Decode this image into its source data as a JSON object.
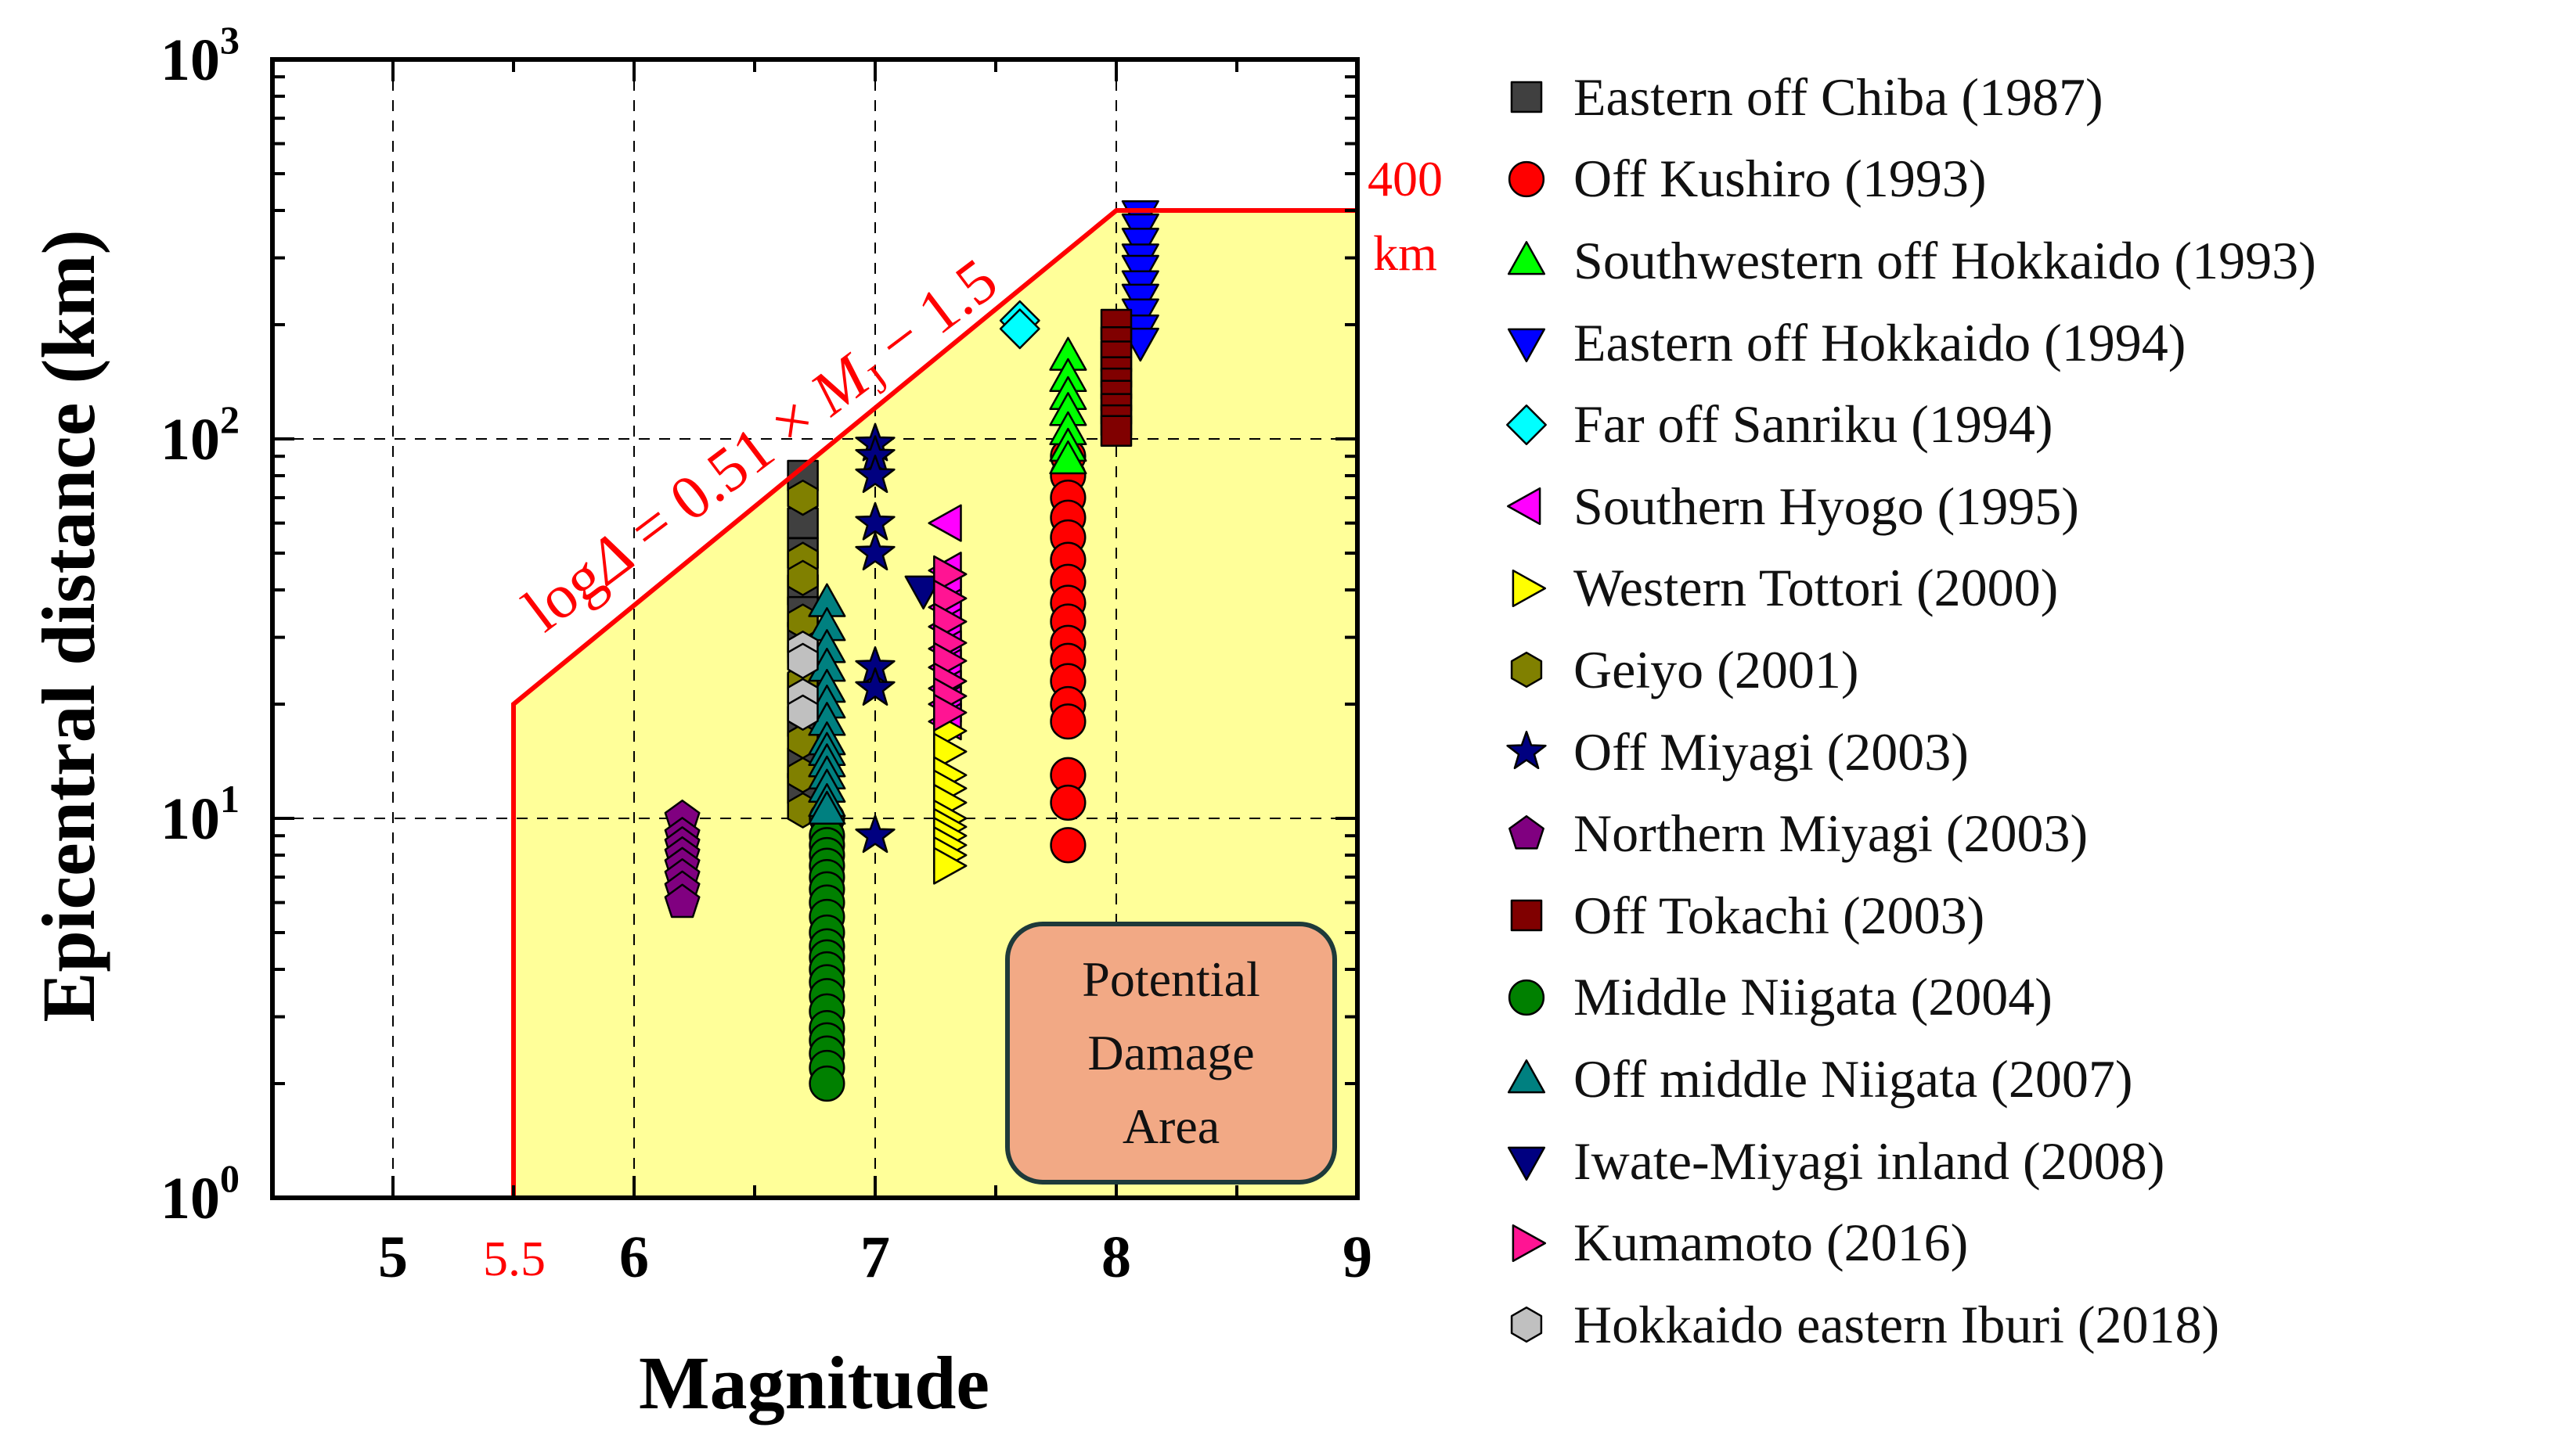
{
  "chart_data": {
    "type": "scatter",
    "title": "",
    "xlabel": "Magnitude",
    "ylabel": "Epicentral distance (km)",
    "xlim": [
      4.5,
      9
    ],
    "ylim": [
      1,
      1000
    ],
    "yscale": "log",
    "grid": true,
    "x_ticks": [
      5,
      6,
      7,
      8,
      9
    ],
    "y_ticks": [
      {
        "value": 1,
        "base": "10",
        "exp": "0"
      },
      {
        "value": 10,
        "base": "10",
        "exp": "1"
      },
      {
        "value": 100,
        "base": "10",
        "exp": "2"
      },
      {
        "value": 1000,
        "base": "10",
        "exp": "3"
      }
    ],
    "extra_x_tick": {
      "value": 5.5,
      "label": "5.5"
    },
    "boundary": {
      "points": [
        [
          5.5,
          1
        ],
        [
          5.5,
          20
        ],
        [
          8.0,
          400
        ],
        [
          9.0,
          400
        ]
      ],
      "equation": {
        "prefix": "log",
        "delta": "Δ",
        "mid": " = 0.51 × ",
        "M": "M",
        "sub": "J",
        "suffix": " − 1.5"
      },
      "limit_label_1": "400",
      "limit_label_2": "km",
      "fill_color": "#ffff99",
      "line_color": "#ff0000"
    },
    "region_label": {
      "line1": "Potential",
      "line2": "Damage",
      "line3": "Area"
    },
    "legend_position": "right",
    "series": [
      {
        "name": "Eastern off Chiba (1987)",
        "marker": "square",
        "color": "#404040",
        "points": [
          [
            6.7,
            80
          ],
          [
            6.7,
            60
          ],
          [
            6.7,
            50
          ],
          [
            6.7,
            40
          ],
          [
            6.7,
            35
          ],
          [
            6.7,
            30
          ],
          [
            6.7,
            22
          ],
          [
            6.7,
            18
          ],
          [
            6.7,
            14
          ],
          [
            6.7,
            12
          ]
        ]
      },
      {
        "name": "Off Kushiro (1993)",
        "marker": "circle",
        "color": "#ff0000",
        "points": [
          [
            7.8,
            90
          ],
          [
            7.8,
            80
          ],
          [
            7.8,
            70
          ],
          [
            7.8,
            62
          ],
          [
            7.8,
            55
          ],
          [
            7.8,
            48
          ],
          [
            7.8,
            42
          ],
          [
            7.8,
            37
          ],
          [
            7.8,
            33
          ],
          [
            7.8,
            29
          ],
          [
            7.8,
            26
          ],
          [
            7.8,
            23
          ],
          [
            7.8,
            20
          ],
          [
            7.8,
            18
          ],
          [
            7.8,
            13
          ],
          [
            7.8,
            11
          ],
          [
            7.8,
            8.5
          ]
        ]
      },
      {
        "name": "Southwestern off Hokkaido (1993)",
        "marker": "triangle-up",
        "color": "#00ff00",
        "points": [
          [
            7.8,
            165
          ],
          [
            7.8,
            145
          ],
          [
            7.8,
            130
          ],
          [
            7.8,
            118
          ],
          [
            7.8,
            105
          ],
          [
            7.8,
            95
          ],
          [
            7.8,
            88
          ]
        ]
      },
      {
        "name": "Eastern off Hokkaido (1994)",
        "marker": "triangle-down",
        "color": "#0000ff",
        "points": [
          [
            8.1,
            390
          ],
          [
            8.1,
            360
          ],
          [
            8.1,
            330
          ],
          [
            8.1,
            300
          ],
          [
            8.1,
            280
          ],
          [
            8.1,
            255
          ],
          [
            8.1,
            235
          ],
          [
            8.1,
            215
          ],
          [
            8.1,
            195
          ],
          [
            8.1,
            180
          ]
        ]
      },
      {
        "name": "Far off Sanriku (1994)",
        "marker": "diamond",
        "color": "#00ffff",
        "points": [
          [
            7.6,
            205
          ],
          [
            7.6,
            195
          ]
        ]
      },
      {
        "name": "Southern Hyogo (1995)",
        "marker": "triangle-left",
        "color": "#ff00ff",
        "points": [
          [
            7.3,
            60
          ],
          [
            7.3,
            45
          ],
          [
            7.3,
            40
          ],
          [
            7.3,
            36
          ],
          [
            7.3,
            32
          ],
          [
            7.3,
            28
          ],
          [
            7.3,
            25
          ],
          [
            7.3,
            22
          ],
          [
            7.3,
            20
          ],
          [
            7.3,
            18
          ]
        ]
      },
      {
        "name": "Western Tottori (2000)",
        "marker": "triangle-right",
        "color": "#ffff00",
        "points": [
          [
            7.3,
            17
          ],
          [
            7.3,
            15
          ],
          [
            7.3,
            13
          ],
          [
            7.3,
            12
          ],
          [
            7.3,
            11
          ],
          [
            7.3,
            10
          ],
          [
            7.3,
            9.5
          ],
          [
            7.3,
            9
          ],
          [
            7.3,
            8.5
          ],
          [
            7.3,
            8
          ],
          [
            7.3,
            7.5
          ]
        ]
      },
      {
        "name": "Geiyo (2001)",
        "marker": "hexagon",
        "color": "#808000",
        "points": [
          [
            6.7,
            70
          ],
          [
            6.7,
            48
          ],
          [
            6.7,
            43
          ],
          [
            6.7,
            33
          ],
          [
            6.7,
            27
          ],
          [
            6.7,
            23
          ],
          [
            6.7,
            19
          ],
          [
            6.7,
            16
          ],
          [
            6.7,
            13
          ],
          [
            6.7,
            10.5
          ]
        ]
      },
      {
        "name": "Off Miyagi (2003)",
        "marker": "star",
        "color": "#000080",
        "points": [
          [
            7.0,
            97
          ],
          [
            7.0,
            90
          ],
          [
            7.0,
            80
          ],
          [
            7.0,
            60
          ],
          [
            7.0,
            50
          ],
          [
            7.0,
            25
          ],
          [
            7.0,
            22
          ],
          [
            7.0,
            9
          ]
        ]
      },
      {
        "name": "Northern Miyagi (2003)",
        "marker": "pentagon",
        "color": "#800080",
        "points": [
          [
            6.2,
            10
          ],
          [
            6.2,
            9
          ],
          [
            6.2,
            8.5
          ],
          [
            6.2,
            8
          ],
          [
            6.2,
            7.5
          ],
          [
            6.2,
            7
          ],
          [
            6.2,
            6.5
          ],
          [
            6.2,
            6
          ]
        ]
      },
      {
        "name": "Off Tokachi (2003)",
        "marker": "square",
        "color": "#800000",
        "points": [
          [
            8.0,
            200
          ],
          [
            8.0,
            180
          ],
          [
            8.0,
            165
          ],
          [
            8.0,
            150
          ],
          [
            8.0,
            140
          ],
          [
            8.0,
            130
          ],
          [
            8.0,
            120
          ],
          [
            8.0,
            112
          ],
          [
            8.0,
            105
          ]
        ]
      },
      {
        "name": "Middle Niigata (2004)",
        "marker": "circle",
        "color": "#008000",
        "points": [
          [
            6.8,
            10
          ],
          [
            6.8,
            9
          ],
          [
            6.8,
            8.5
          ],
          [
            6.8,
            8
          ],
          [
            6.8,
            7.5
          ],
          [
            6.8,
            7
          ],
          [
            6.8,
            6.5
          ],
          [
            6.8,
            6
          ],
          [
            6.8,
            5.5
          ],
          [
            6.8,
            5
          ],
          [
            6.8,
            4.6
          ],
          [
            6.8,
            4.3
          ],
          [
            6.8,
            4
          ],
          [
            6.8,
            3.7
          ],
          [
            6.8,
            3.4
          ],
          [
            6.8,
            3.1
          ],
          [
            6.8,
            2.8
          ],
          [
            6.8,
            2.6
          ],
          [
            6.8,
            2.4
          ],
          [
            6.8,
            2.2
          ],
          [
            6.8,
            2
          ]
        ]
      },
      {
        "name": "Off middle Niigata (2007)",
        "marker": "triangle-up",
        "color": "#008080",
        "points": [
          [
            6.8,
            37
          ],
          [
            6.8,
            32
          ],
          [
            6.8,
            28
          ],
          [
            6.8,
            25
          ],
          [
            6.8,
            22
          ],
          [
            6.8,
            20
          ],
          [
            6.8,
            18
          ],
          [
            6.8,
            16
          ],
          [
            6.8,
            15
          ],
          [
            6.8,
            14
          ],
          [
            6.8,
            13
          ],
          [
            6.8,
            12
          ],
          [
            6.8,
            11
          ],
          [
            6.8,
            10.5
          ]
        ]
      },
      {
        "name": "Iwate-Miyagi inland (2008)",
        "marker": "triangle-down",
        "color": "#000080",
        "points": [
          [
            7.2,
            40
          ]
        ]
      },
      {
        "name": "Kumamoto (2016)",
        "marker": "triangle-right",
        "color": "#ff1493",
        "points": [
          [
            7.3,
            44
          ],
          [
            7.3,
            38
          ],
          [
            7.3,
            33
          ],
          [
            7.3,
            29
          ],
          [
            7.3,
            26
          ],
          [
            7.3,
            23
          ],
          [
            7.3,
            21
          ],
          [
            7.3,
            19
          ]
        ]
      },
      {
        "name": "Hokkaido eastern Iburi (2018)",
        "marker": "hexagon",
        "color": "#c0c0c0",
        "points": [
          [
            6.7,
            28
          ],
          [
            6.7,
            26
          ],
          [
            6.7,
            21
          ],
          [
            6.7,
            19
          ]
        ]
      }
    ]
  }
}
